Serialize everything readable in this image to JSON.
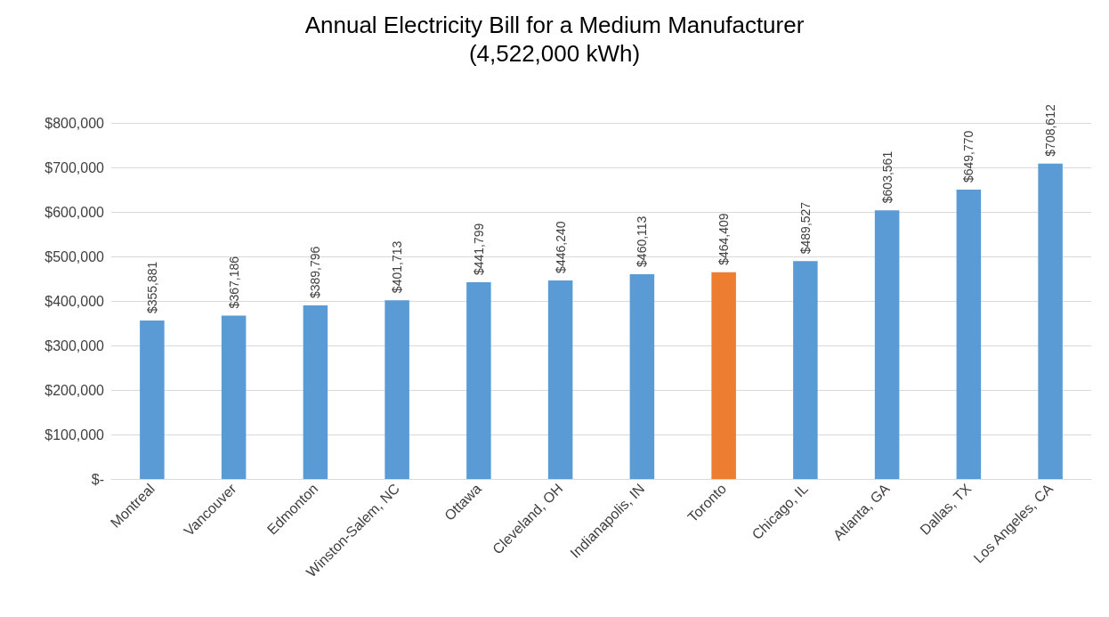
{
  "chart_data": {
    "type": "bar",
    "title": "Annual Electricity Bill for a Medium Manufacturer",
    "subtitle": "(4,522,000 kWh)",
    "categories": [
      "Montreal",
      "Vancouver",
      "Edmonton",
      "Winston-Salem, NC",
      "Ottawa",
      "Cleveland, OH",
      "Indianapolis, IN",
      "Toronto",
      "Chicago, IL",
      "Atlanta, GA",
      "Dallas, TX",
      "Los Angeles, CA"
    ],
    "values": [
      355881,
      367186,
      389796,
      401713,
      441799,
      446240,
      460113,
      464409,
      489527,
      603561,
      649770,
      708612
    ],
    "colors": [
      "#5b9bd5",
      "#5b9bd5",
      "#5b9bd5",
      "#5b9bd5",
      "#5b9bd5",
      "#5b9bd5",
      "#5b9bd5",
      "#ed7d31",
      "#5b9bd5",
      "#5b9bd5",
      "#5b9bd5",
      "#5b9bd5"
    ],
    "value_labels": [
      "$355,881",
      "$367,186",
      "$389,796",
      "$401,713",
      "$441,799",
      "$446,240",
      "$460,113",
      "$464,409",
      "$489,527",
      "$603,561",
      "$649,770",
      "$708,612"
    ],
    "ylim": [
      0,
      800000
    ],
    "yticks": [
      {
        "value": 0,
        "label": "$-"
      },
      {
        "value": 100000,
        "label": "$100,000"
      },
      {
        "value": 200000,
        "label": "$200,000"
      },
      {
        "value": 300000,
        "label": "$300,000"
      },
      {
        "value": 400000,
        "label": "$400,000"
      },
      {
        "value": 500000,
        "label": "$500,000"
      },
      {
        "value": 600000,
        "label": "$600,000"
      },
      {
        "value": 700000,
        "label": "$700,000"
      },
      {
        "value": 800000,
        "label": "$800,000"
      }
    ],
    "grid": "y"
  }
}
